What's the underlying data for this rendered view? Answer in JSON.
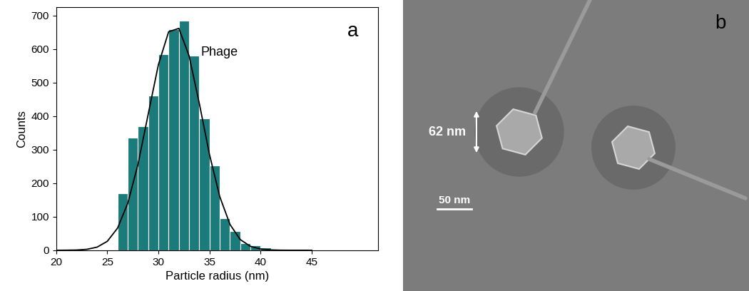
{
  "chart_data": {
    "type": "histogram",
    "panel_label": "a",
    "annotation": "Phage",
    "x_label": "Particle radius (nm)",
    "y_label": "Counts",
    "bins": [
      26,
      27,
      28,
      29,
      30,
      31,
      32,
      33,
      34,
      35,
      36,
      37,
      38,
      39,
      40,
      41
    ],
    "values": [
      170,
      335,
      370,
      462,
      585,
      660,
      685,
      580,
      393,
      252,
      95,
      57,
      22,
      15,
      8
    ],
    "color": "#1b7b7b",
    "fit": {
      "x": [
        20,
        21,
        22,
        23,
        24,
        25,
        26,
        27,
        28,
        29,
        30,
        31,
        32,
        33,
        34,
        35,
        36,
        37,
        38,
        39,
        40,
        41,
        42,
        43,
        44,
        45
      ],
      "values": [
        0,
        0.2,
        0.7,
        2.8,
        9.3,
        26.7,
        65.9,
        140,
        256,
        406,
        554,
        652,
        662,
        580,
        438,
        285,
        160,
        77,
        32,
        11.7,
        3.6,
        1,
        0.2,
        0,
        0,
        0
      ],
      "color": "#000000"
    },
    "xlim": [
      20,
      51.5
    ],
    "xticks": [
      20,
      25,
      30,
      35,
      40,
      45
    ],
    "ylim": [
      0,
      725
    ],
    "yticks": [
      0,
      100,
      200,
      300,
      400,
      500,
      600,
      700
    ],
    "grid": false
  },
  "image": {
    "panel_label": "b",
    "size_label": "62 nm",
    "scale_bar_label": "50 nm"
  }
}
